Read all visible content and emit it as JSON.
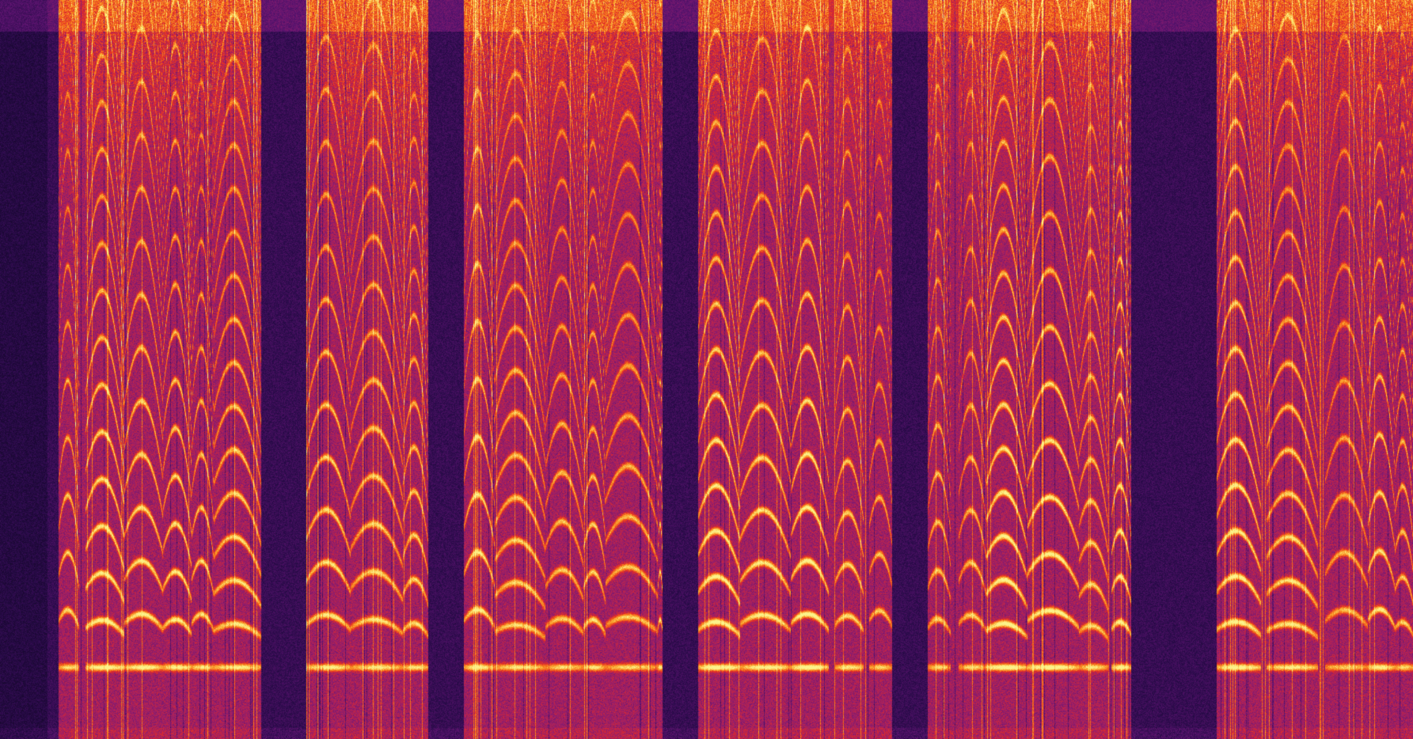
{
  "spectrogram": {
    "colormap": "inferno",
    "colors": [
      "#0d0520",
      "#2a0b4a",
      "#5c1470",
      "#9a1f6a",
      "#e02a2a",
      "#f5701a",
      "#fbb33a",
      "#fcf38a"
    ]
  }
}
